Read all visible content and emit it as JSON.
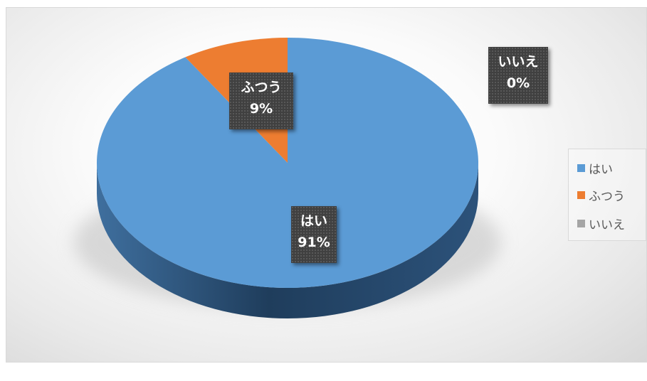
{
  "chart_data": {
    "type": "pie",
    "categories": [
      "はい",
      "ふつう",
      "いいえ"
    ],
    "values": [
      91,
      9,
      0
    ],
    "data_labels": [
      {
        "name": "はい",
        "percent": "91%"
      },
      {
        "name": "ふつう",
        "percent": "9%"
      },
      {
        "name": "いいえ",
        "percent": "0%"
      }
    ],
    "colors": [
      "#5b9bd5",
      "#ed7d31",
      "#a5a5a5"
    ],
    "legend_position": "right",
    "three_d": true
  }
}
